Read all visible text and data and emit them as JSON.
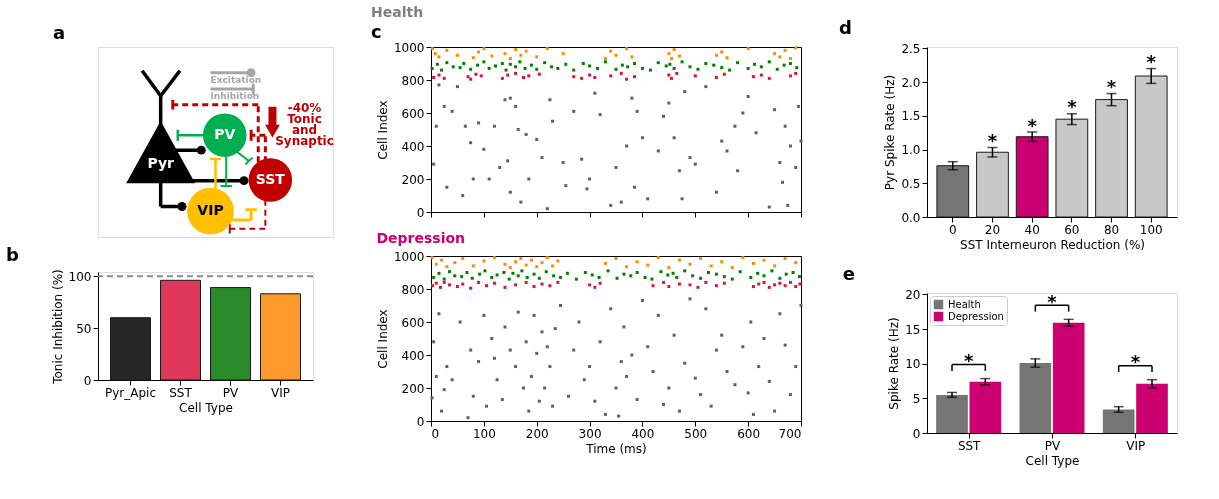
{
  "chart_data": [
    {
      "type": "other",
      "title": "a",
      "categories": [
        "Pyr",
        "PV",
        "SST",
        "VIP"
      ],
      "annotations": [
        "Excitation",
        "Inhibition",
        "-40%",
        "Tonic",
        "and",
        "Synaptic"
      ]
    },
    {
      "type": "bar",
      "title": "b",
      "categories": [
        "Pyr_Apic",
        "SST",
        "PV",
        "VIP"
      ],
      "values": [
        60,
        96,
        89,
        83
      ],
      "colors": [
        "#262626",
        "#e0385a",
        "#2a8b2a",
        "#ff9a2a"
      ],
      "ylim": [
        0,
        104
      ],
      "yticks": [
        0,
        50,
        100
      ],
      "xlabel": "Cell Type",
      "ylabel": "Tonic Inhibition (%)",
      "ref_lines": [
        {
          "axis": "y",
          "value": 100,
          "color": "#8c8c8c",
          "line_style": "dashed"
        }
      ]
    },
    {
      "type": "scatter",
      "title": "Health",
      "annotations": [
        "c"
      ],
      "xlim": [
        0,
        700
      ],
      "xticks": [
        0,
        100,
        200,
        300,
        400,
        500,
        600,
        700
      ],
      "ylim": [
        0,
        1000
      ],
      "yticks": [
        0,
        200,
        400,
        600,
        800,
        1000
      ],
      "ylabel": "Cell Index",
      "tick_labels": "y",
      "marker": "square",
      "series": [
        {
          "color": "#606060",
          "x": [
            5,
            10,
            15,
            25,
            30,
            40,
            50,
            60,
            65,
            75,
            80,
            90,
            100,
            110,
            120,
            130,
            140,
            145,
            150,
            150,
            160,
            165,
            170,
            180,
            185,
            200,
            210,
            220,
            225,
            230,
            250,
            255,
            270,
            285,
            295,
            300,
            310,
            320,
            340,
            350,
            360,
            370,
            380,
            385,
            390,
            400,
            410,
            430,
            440,
            450,
            460,
            470,
            475,
            480,
            490,
            500,
            520,
            540,
            550,
            560,
            575,
            580,
            590,
            600,
            615,
            640,
            650,
            660,
            665,
            670,
            675,
            680,
            690,
            695,
            700
          ],
          "values": [
            290,
            520,
            770,
            640,
            150,
            610,
            760,
            100,
            520,
            420,
            200,
            540,
            380,
            200,
            520,
            270,
            680,
            310,
            120,
            690,
            640,
            500,
            60,
            470,
            200,
            440,
            330,
            20,
            680,
            550,
            300,
            160,
            610,
            320,
            140,
            200,
            720,
            590,
            40,
            270,
            60,
            400,
            690,
            150,
            610,
            450,
            80,
            370,
            580,
            660,
            450,
            250,
            80,
            730,
            330,
            290,
            760,
            120,
            430,
            370,
            520,
            250,
            600,
            700,
            480,
            30,
            620,
            300,
            180,
            520,
            40,
            400,
            270,
            640,
            430
          ]
        },
        {
          "color": "#dc143c",
          "x": [
            5,
            15,
            25,
            70,
            75,
            85,
            95,
            135,
            145,
            160,
            175,
            185,
            205,
            270,
            285,
            300,
            310,
            340,
            360,
            370,
            385,
            450,
            455,
            465,
            500,
            540,
            555,
            610,
            625,
            640,
            680,
            690
          ],
          "values": [
            815,
            830,
            810,
            820,
            805,
            835,
            825,
            810,
            830,
            840,
            815,
            825,
            835,
            820,
            810,
            830,
            815,
            825,
            840,
            805,
            820,
            830,
            810,
            840,
            825,
            815,
            835,
            820,
            830,
            810,
            825,
            840
          ]
        },
        {
          "color": "#008000",
          "x": [
            2,
            12,
            20,
            30,
            42,
            55,
            62,
            75,
            88,
            100,
            110,
            122,
            135,
            142,
            150,
            160,
            168,
            178,
            190,
            200,
            215,
            228,
            240,
            255,
            270,
            288,
            300,
            315,
            330,
            350,
            362,
            372,
            385,
            400,
            415,
            430,
            445,
            452,
            460,
            475,
            490,
            505,
            520,
            535,
            550,
            565,
            580,
            600,
            612,
            625,
            640,
            655,
            668,
            680,
            692
          ],
          "values": [
            870,
            895,
            860,
            905,
            880,
            875,
            900,
            865,
            890,
            910,
            870,
            885,
            900,
            860,
            895,
            880,
            910,
            870,
            890,
            865,
            905,
            880,
            870,
            895,
            860,
            900,
            885,
            870,
            910,
            865,
            890,
            880,
            900,
            870,
            860,
            905,
            885,
            895,
            870,
            910,
            880,
            865,
            900,
            890,
            875,
            860,
            905,
            870,
            895,
            880,
            910,
            865,
            890,
            900,
            875
          ]
        },
        {
          "color": "#ff8c00",
          "x": [
            3,
            8,
            15,
            30,
            50,
            80,
            90,
            100,
            115,
            140,
            150,
            160,
            170,
            180,
            200,
            220,
            250,
            330,
            340,
            350,
            370,
            380,
            450,
            455,
            460,
            470,
            540,
            550,
            560,
            600,
            650,
            660,
            670,
            680,
            690
          ],
          "values": [
            990,
            960,
            940,
            980,
            950,
            935,
            970,
            990,
            945,
            960,
            930,
            985,
            950,
            975,
            940,
            990,
            960,
            930,
            975,
            950,
            990,
            940,
            960,
            930,
            985,
            945,
            950,
            970,
            935,
            990,
            960,
            940,
            980,
            930,
            995
          ]
        }
      ]
    },
    {
      "type": "scatter",
      "title": "Depression",
      "xlim": [
        0,
        700
      ],
      "xticks": [
        0,
        100,
        200,
        300,
        400,
        500,
        600,
        700
      ],
      "ylim": [
        0,
        1000
      ],
      "yticks": [
        0,
        200,
        400,
        600,
        800,
        1000
      ],
      "xlabel": "Time (ms)",
      "ylabel": "Cell Index",
      "marker": "square",
      "series": [
        {
          "color": "#606060",
          "x": [
            2,
            5,
            10,
            15,
            20,
            25,
            30,
            40,
            55,
            70,
            75,
            80,
            90,
            100,
            105,
            115,
            120,
            125,
            135,
            140,
            150,
            160,
            165,
            175,
            180,
            185,
            190,
            195,
            200,
            205,
            210,
            215,
            220,
            225,
            230,
            235,
            245,
            260,
            270,
            280,
            290,
            300,
            310,
            320,
            330,
            340,
            350,
            355,
            360,
            365,
            370,
            380,
            390,
            400,
            410,
            420,
            430,
            440,
            450,
            460,
            470,
            480,
            490,
            500,
            510,
            520,
            530,
            540,
            550,
            560,
            575,
            590,
            600,
            605,
            610,
            620,
            630,
            640,
            650,
            660,
            670,
            680,
            690,
            700
          ],
          "values": [
            140,
            480,
            270,
            650,
            60,
            190,
            330,
            250,
            600,
            20,
            430,
            150,
            360,
            640,
            90,
            500,
            380,
            250,
            130,
            570,
            430,
            330,
            660,
            200,
            480,
            60,
            270,
            640,
            410,
            120,
            540,
            200,
            450,
            330,
            90,
            560,
            700,
            150,
            430,
            600,
            250,
            330,
            120,
            480,
            40,
            680,
            200,
            30,
            360,
            570,
            270,
            400,
            130,
            730,
            450,
            300,
            640,
            100,
            200,
            520,
            60,
            350,
            740,
            260,
            160,
            680,
            90,
            430,
            520,
            300,
            220,
            450,
            170,
            600,
            40,
            330,
            500,
            240,
            60,
            650,
            460,
            160,
            330,
            700
          ]
        },
        {
          "color": "#dc143c",
          "x": [
            3,
            10,
            18,
            25,
            35,
            50,
            60,
            75,
            90,
            105,
            120,
            140,
            160,
            180,
            195,
            210,
            225,
            240,
            300,
            310,
            320,
            420,
            440,
            450,
            470,
            490,
            505,
            520,
            540,
            555,
            610,
            620,
            630,
            640,
            650,
            660,
            670,
            680,
            690,
            698
          ],
          "values": [
            820,
            835,
            810,
            840,
            825,
            815,
            830,
            805,
            840,
            820,
            835,
            810,
            825,
            840,
            815,
            830,
            820,
            840,
            825,
            810,
            835,
            820,
            840,
            815,
            830,
            825,
            810,
            840,
            820,
            835,
            815,
            830,
            840,
            810,
            825,
            835,
            820,
            840,
            815,
            830
          ]
        },
        {
          "color": "#008000",
          "x": [
            5,
            15,
            25,
            35,
            45,
            58,
            68,
            78,
            92,
            102,
            115,
            125,
            138,
            148,
            155,
            165,
            172,
            182,
            195,
            205,
            218,
            232,
            245,
            258,
            275,
            292,
            305,
            318,
            335,
            352,
            365,
            378,
            390,
            405,
            418,
            435,
            448,
            458,
            465,
            480,
            495,
            510,
            525,
            540,
            555,
            570,
            585,
            605,
            618,
            630,
            645,
            660,
            672,
            685,
            697
          ],
          "values": [
            870,
            895,
            860,
            905,
            880,
            875,
            900,
            865,
            890,
            910,
            870,
            885,
            900,
            860,
            895,
            880,
            910,
            870,
            890,
            865,
            905,
            880,
            870,
            895,
            860,
            900,
            885,
            870,
            910,
            865,
            890,
            880,
            900,
            870,
            860,
            905,
            885,
            895,
            870,
            910,
            880,
            865,
            900,
            890,
            875,
            860,
            905,
            870,
            895,
            880,
            910,
            865,
            890,
            900,
            875
          ]
        },
        {
          "color": "#ff8c00",
          "x": [
            2,
            10,
            20,
            30,
            45,
            60,
            80,
            100,
            120,
            140,
            150,
            160,
            170,
            180,
            190,
            200,
            210,
            220,
            230,
            240,
            330,
            350,
            370,
            390,
            410,
            430,
            450,
            470,
            490,
            510,
            530,
            550,
            570,
            590,
            610,
            630,
            650,
            670,
            690
          ],
          "values": [
            990,
            950,
            975,
            935,
            960,
            985,
            940,
            970,
            990,
            950,
            930,
            965,
            985,
            945,
            975,
            935,
            960,
            990,
            940,
            970,
            955,
            985,
            935,
            965,
            945,
            990,
            930,
            975,
            950,
            985,
            940,
            965,
            930,
            990,
            955,
            975,
            940,
            985,
            960
          ]
        }
      ]
    },
    {
      "type": "bar",
      "title": "d",
      "categories": [
        "0",
        "20",
        "40",
        "60",
        "80",
        "100"
      ],
      "values": [
        0.76,
        0.96,
        1.19,
        1.45,
        1.74,
        2.09
      ],
      "errors": [
        0.06,
        0.07,
        0.07,
        0.08,
        0.09,
        0.11
      ],
      "colors": [
        "#757575",
        "#c8c8c8",
        "#cc0070",
        "#c8c8c8",
        "#c8c8c8",
        "#c8c8c8"
      ],
      "ylim": [
        0,
        2.52
      ],
      "yticks": [
        {
          "value": 0,
          "label": "0.0"
        },
        {
          "value": 0.5,
          "label": "0.5"
        },
        {
          "value": 1,
          "label": "1.0"
        },
        {
          "value": 1.5,
          "label": "1.5"
        },
        {
          "value": 2,
          "label": "2.0"
        },
        {
          "value": 2.5,
          "label": "2.5"
        }
      ],
      "xlabel": "SST Interneuron Reduction (%)",
      "ylabel": "Pyr Spike Rate (Hz)",
      "annotations": [
        "*",
        "*",
        "*",
        "*",
        "*"
      ]
    },
    {
      "type": "bar",
      "title": "e",
      "categories": [
        "SST",
        "PV",
        "VIP"
      ],
      "ylim": [
        0,
        20.2
      ],
      "yticks": [
        0,
        5,
        10,
        15,
        20
      ],
      "xlabel": "Cell Type",
      "ylabel": "Spike Rate (Hz)",
      "legend": "top left",
      "series": [
        {
          "name": "Health",
          "color": "#757575",
          "values": [
            5.5,
            10.1,
            3.4
          ],
          "errors": [
            0.35,
            0.6,
            0.4
          ]
        },
        {
          "name": "Depression",
          "color": "#cc0070",
          "values": [
            7.4,
            15.9,
            7.1
          ],
          "errors": [
            0.45,
            0.5,
            0.6
          ]
        }
      ],
      "annotations": [
        "*",
        "*",
        "*"
      ]
    }
  ]
}
